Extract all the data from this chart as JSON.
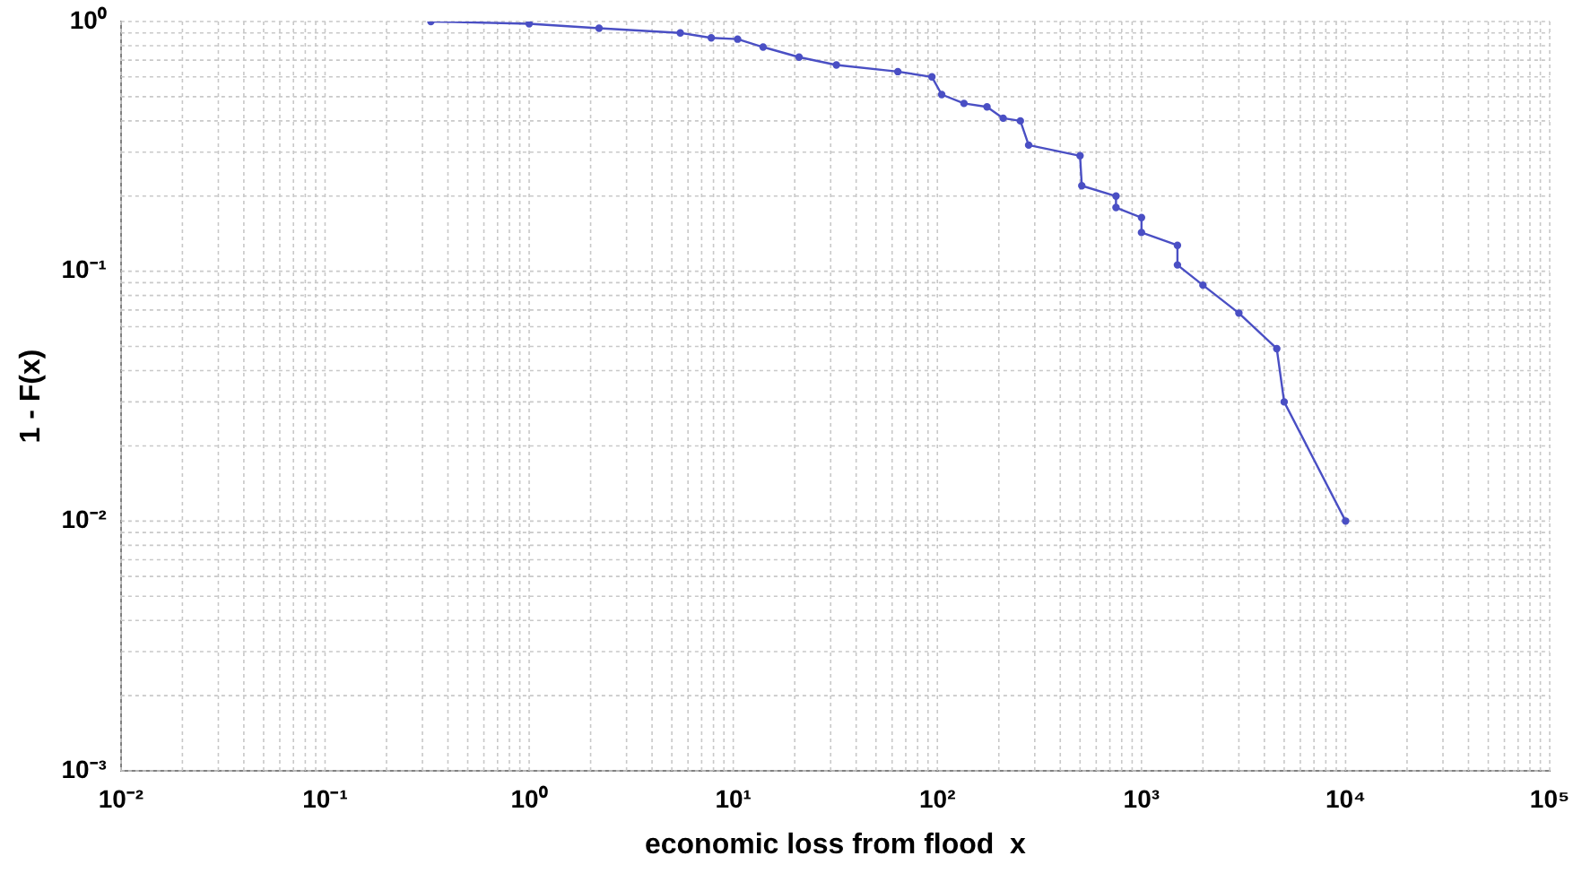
{
  "chart_data": {
    "type": "line",
    "xlabel": "economic loss from flood  x",
    "ylabel": "1 - F(x)",
    "log": "xy",
    "grid": true,
    "marker": "circle",
    "line_style": "solid",
    "xlim": [
      0.01,
      100000
    ],
    "ylim": [
      0.001,
      1
    ],
    "xticks": [
      {
        "value": 0.01,
        "label": "10⁻²"
      },
      {
        "value": 0.1,
        "label": "10⁻¹"
      },
      {
        "value": 1,
        "label": "10⁰"
      },
      {
        "value": 10,
        "label": "10¹"
      },
      {
        "value": 100,
        "label": "10²"
      },
      {
        "value": 1000,
        "label": "10³"
      },
      {
        "value": 10000,
        "label": "10⁴"
      },
      {
        "value": 100000,
        "label": "10⁵"
      }
    ],
    "yticks": [
      {
        "value": 0.001,
        "label": "10⁻³"
      },
      {
        "value": 0.01,
        "label": "10⁻²"
      },
      {
        "value": 0.1,
        "label": "10⁻¹"
      },
      {
        "value": 1,
        "label": "10⁰"
      }
    ],
    "x": [
      0.33,
      1,
      2.2,
      5.5,
      7.8,
      10.5,
      14,
      21,
      32,
      64,
      94,
      105,
      135,
      175,
      210,
      255,
      280,
      500,
      510,
      750,
      750,
      1000,
      1000,
      1500,
      1500,
      2000,
      3000,
      4600,
      5000,
      10000
    ],
    "series": [
      {
        "color": "#4a4fc4",
        "values": [
          1.0,
          0.98,
          0.94,
          0.9,
          0.86,
          0.85,
          0.79,
          0.72,
          0.67,
          0.63,
          0.6,
          0.51,
          0.47,
          0.455,
          0.41,
          0.4,
          0.32,
          0.29,
          0.22,
          0.2,
          0.18,
          0.164,
          0.143,
          0.127,
          0.106,
          0.088,
          0.068,
          0.049,
          0.03,
          0.01
        ]
      }
    ]
  }
}
